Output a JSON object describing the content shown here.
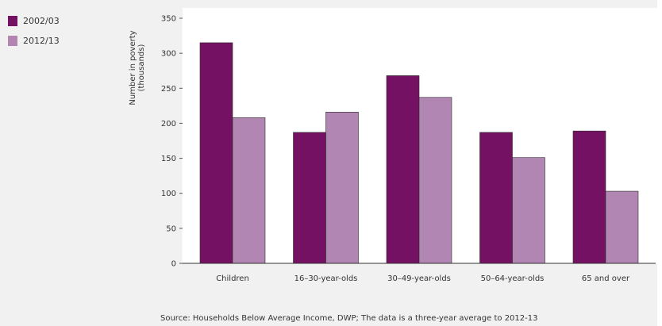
{
  "chart_data": {
    "type": "bar",
    "title": "",
    "xlabel": "",
    "ylabel": "Number in poverty\n(thousands)",
    "ylim": [
      0,
      350
    ],
    "yticks": [
      0,
      50,
      100,
      150,
      200,
      250,
      300,
      350
    ],
    "grid": false,
    "legend_position": "top-left",
    "categories": [
      "Children",
      "16–30-year-olds",
      "30–49-year-olds",
      "50–64-year-olds",
      "65 and over"
    ],
    "series": [
      {
        "name": "2002/03",
        "color": "#741163",
        "values": [
          315,
          187,
          268,
          187,
          189
        ]
      },
      {
        "name": "2012/13",
        "color": "#b286b2",
        "values": [
          208,
          216,
          237,
          151,
          103
        ]
      }
    ],
    "source": "Source: Households Below Average Income, DWP; The data is a three-year average to 2012-13"
  }
}
